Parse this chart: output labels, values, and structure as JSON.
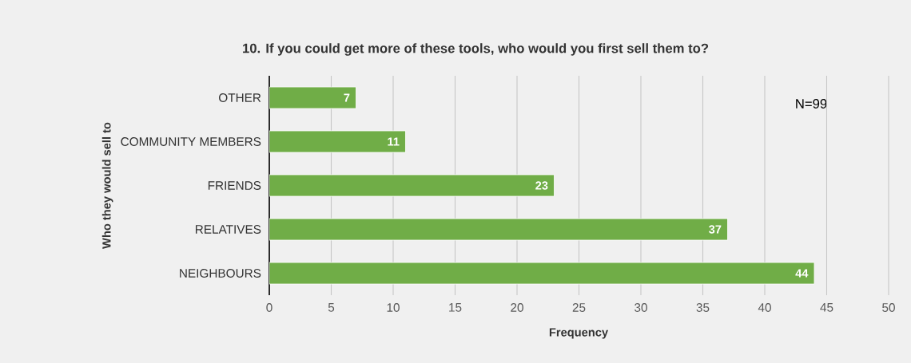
{
  "chart_data": {
    "type": "bar",
    "orientation": "horizontal",
    "title": "10. If you could get more of these tools, who would you first sell them to?",
    "xlabel": "Frequency",
    "ylabel": "Who they would sell to",
    "categories": [
      "OTHER",
      "COMMUNITY MEMBERS",
      "FRIENDS",
      "RELATIVES",
      "NEIGHBOURS"
    ],
    "values": [
      7,
      11,
      23,
      37,
      44
    ],
    "color": "#70ad47",
    "xlim": [
      0,
      50
    ],
    "xticks": [
      0,
      5,
      10,
      15,
      20,
      25,
      30,
      35,
      40,
      45,
      50
    ],
    "grid": "x",
    "data_labels": true,
    "annotations": [
      "N=99"
    ]
  }
}
